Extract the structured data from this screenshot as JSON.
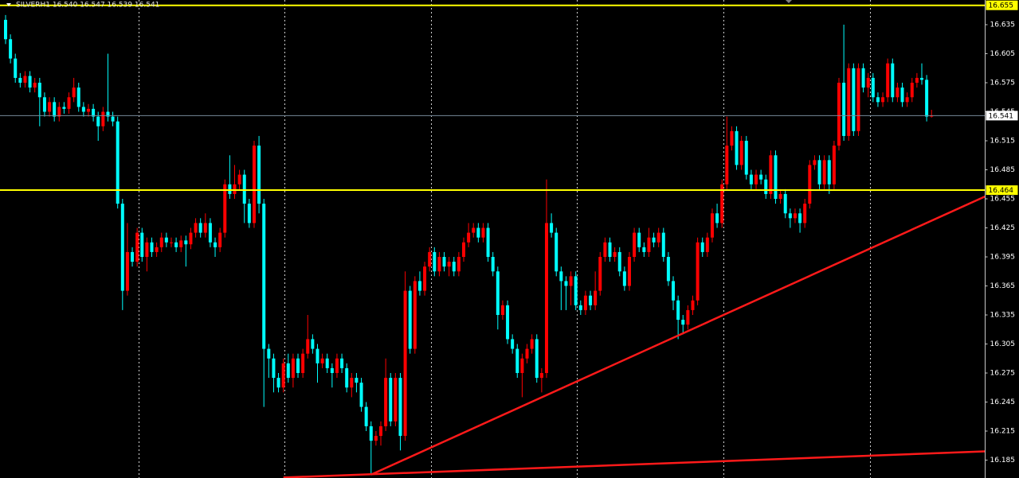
{
  "chart_data": {
    "type": "candlestick",
    "title": "SILVERH1 16.540 16.547 16.539 16.541",
    "up_color": "#ff0000",
    "down_color": "#00ffff",
    "ylim": [
      16.1665,
      16.6605
    ],
    "yticks": [
      16.635,
      16.605,
      16.575,
      16.545,
      16.515,
      16.485,
      16.455,
      16.425,
      16.395,
      16.365,
      16.335,
      16.305,
      16.275,
      16.245,
      16.215,
      16.185
    ],
    "separators": [
      27,
      57,
      87,
      117,
      147,
      177
    ],
    "hlines": [
      {
        "value": 16.655,
        "color": "#ffff00"
      },
      {
        "value": 16.464,
        "color": "#ffff00"
      },
      {
        "value": 16.541,
        "color": "#778899"
      }
    ],
    "trendlines": [
      {
        "from": {
          "index": 57,
          "price": 16.167
        },
        "to": {
          "index": 201,
          "price": 16.194
        },
        "color": "#ff1a1a"
      },
      {
        "from": {
          "index": 75,
          "price": 16.17
        },
        "to": {
          "index": 201,
          "price": 16.4575
        },
        "color": "#ff1a1a"
      }
    ],
    "open": [
      16.64,
      16.62,
      16.6,
      16.58,
      16.575,
      16.582,
      16.57,
      16.575,
      16.56,
      16.545,
      16.555,
      16.54,
      16.55,
      16.548,
      16.56,
      16.57,
      16.55,
      16.545,
      16.548,
      16.54,
      16.53,
      16.545,
      16.54,
      16.535,
      16.45,
      16.36,
      16.4,
      16.39,
      16.42,
      16.395,
      16.41,
      16.4,
      16.405,
      16.415,
      16.41,
      16.41,
      16.405,
      16.412,
      16.408,
      16.42,
      16.43,
      16.42,
      16.43,
      16.41,
      16.405,
      16.42,
      16.47,
      16.46,
      16.47,
      16.48,
      16.45,
      16.43,
      16.51,
      16.45,
      16.3,
      16.29,
      16.27,
      16.26,
      16.285,
      16.27,
      16.29,
      16.275,
      16.295,
      16.31,
      16.3,
      16.285,
      16.29,
      16.28,
      16.275,
      16.29,
      16.28,
      16.26,
      16.27,
      16.265,
      16.24,
      16.22,
      16.205,
      16.21,
      16.22,
      16.27,
      16.225,
      16.27,
      16.21,
      16.36,
      16.3,
      16.37,
      16.36,
      16.385,
      16.4,
      16.38,
      16.395,
      16.385,
      16.39,
      16.38,
      16.395,
      16.41,
      16.42,
      16.425,
      16.415,
      16.425,
      16.395,
      16.38,
      16.335,
      16.345,
      16.31,
      16.3,
      16.275,
      16.29,
      16.3,
      16.31,
      16.27,
      16.275,
      16.43,
      16.42,
      16.38,
      16.37,
      16.365,
      16.375,
      16.345,
      16.34,
      16.355,
      16.345,
      16.36,
      16.395,
      16.41,
      16.395,
      16.4,
      16.38,
      16.365,
      16.395,
      16.42,
      16.405,
      16.4,
      16.415,
      16.41,
      16.42,
      16.395,
      16.37,
      16.35,
      16.33,
      16.325,
      16.34,
      16.35,
      16.41,
      16.4,
      16.415,
      16.44,
      16.43,
      16.47,
      16.51,
      16.525,
      16.49,
      16.515,
      16.48,
      16.47,
      16.48,
      16.475,
      16.46,
      16.5,
      16.455,
      16.46,
      16.44,
      16.435,
      16.44,
      16.43,
      16.45,
      16.49,
      16.495,
      16.47,
      16.495,
      16.47,
      16.51,
      16.575,
      16.52,
      16.59,
      16.525,
      16.59,
      16.57,
      16.58,
      16.56,
      16.555,
      16.56,
      16.595,
      16.56,
      16.57,
      16.555,
      16.56,
      16.575,
      16.58,
      16.578,
      16.54
    ],
    "high": [
      16.645,
      16.625,
      16.605,
      16.585,
      16.587,
      16.587,
      16.58,
      16.58,
      16.565,
      16.56,
      16.56,
      16.555,
      16.555,
      16.565,
      16.58,
      16.575,
      16.555,
      16.553,
      16.553,
      16.545,
      16.55,
      16.605,
      16.545,
      16.54,
      16.455,
      16.43,
      16.405,
      16.425,
      16.425,
      16.415,
      16.415,
      16.41,
      16.42,
      16.42,
      16.415,
      16.415,
      16.417,
      16.417,
      16.425,
      16.435,
      16.435,
      16.44,
      16.435,
      16.415,
      16.425,
      16.475,
      16.5,
      16.49,
      16.485,
      16.485,
      16.455,
      16.515,
      16.52,
      16.455,
      16.305,
      16.295,
      16.275,
      16.29,
      16.295,
      16.295,
      16.295,
      16.3,
      16.335,
      16.315,
      16.305,
      16.295,
      16.295,
      16.285,
      16.295,
      16.295,
      16.285,
      16.275,
      16.275,
      16.27,
      16.245,
      16.225,
      16.215,
      16.225,
      16.29,
      16.275,
      16.275,
      16.275,
      16.38,
      16.365,
      16.375,
      16.38,
      16.39,
      16.405,
      16.405,
      16.4,
      16.4,
      16.395,
      16.395,
      16.4,
      16.415,
      16.43,
      16.43,
      16.43,
      16.43,
      16.43,
      16.4,
      16.385,
      16.35,
      16.35,
      16.315,
      16.305,
      16.295,
      16.305,
      16.315,
      16.315,
      16.28,
      16.475,
      16.44,
      16.425,
      16.385,
      16.375,
      16.38,
      16.38,
      16.35,
      16.36,
      16.36,
      16.38,
      16.4,
      16.415,
      16.415,
      16.405,
      16.405,
      16.385,
      16.4,
      16.425,
      16.425,
      16.41,
      16.425,
      16.42,
      16.425,
      16.425,
      16.4,
      16.375,
      16.355,
      16.335,
      16.345,
      16.355,
      16.415,
      16.415,
      16.42,
      16.445,
      16.45,
      16.475,
      16.54,
      16.53,
      16.53,
      16.52,
      16.52,
      16.485,
      16.485,
      16.485,
      16.48,
      16.505,
      16.505,
      16.465,
      16.465,
      16.445,
      16.445,
      16.445,
      16.455,
      16.495,
      16.5,
      16.5,
      16.5,
      16.5,
      16.515,
      16.58,
      16.635,
      16.595,
      16.595,
      16.595,
      16.595,
      16.585,
      16.585,
      16.565,
      16.565,
      16.6,
      16.6,
      16.575,
      16.575,
      16.565,
      16.58,
      16.585,
      16.595,
      16.583,
      16.547
    ],
    "low": [
      16.615,
      16.595,
      16.575,
      16.57,
      16.57,
      16.565,
      16.565,
      16.53,
      16.54,
      16.54,
      16.535,
      16.535,
      16.543,
      16.543,
      16.555,
      16.545,
      16.54,
      16.54,
      16.535,
      16.515,
      16.525,
      16.535,
      16.53,
      16.445,
      16.34,
      16.355,
      16.385,
      16.385,
      16.39,
      16.38,
      16.395,
      16.395,
      16.4,
      16.405,
      16.405,
      16.4,
      16.4,
      16.385,
      16.403,
      16.415,
      16.415,
      16.415,
      16.405,
      16.395,
      16.4,
      16.415,
      16.455,
      16.455,
      16.465,
      16.43,
      16.425,
      16.425,
      16.44,
      16.24,
      16.27,
      16.255,
      16.255,
      16.255,
      16.265,
      16.26,
      16.27,
      16.27,
      16.29,
      16.295,
      16.265,
      16.28,
      16.275,
      16.26,
      16.27,
      16.275,
      16.255,
      16.25,
      16.255,
      16.235,
      16.215,
      16.17,
      16.2,
      16.2,
      16.215,
      16.22,
      16.22,
      16.195,
      16.205,
      16.295,
      16.295,
      16.355,
      16.355,
      16.38,
      16.375,
      16.375,
      16.38,
      16.375,
      16.375,
      16.375,
      16.39,
      16.405,
      16.415,
      16.41,
      16.41,
      16.39,
      16.375,
      16.32,
      16.33,
      16.305,
      16.295,
      16.27,
      16.25,
      16.285,
      16.295,
      16.265,
      16.255,
      16.27,
      16.415,
      16.375,
      16.34,
      16.34,
      16.345,
      16.34,
      16.335,
      16.335,
      16.34,
      16.34,
      16.355,
      16.39,
      16.39,
      16.39,
      16.375,
      16.36,
      16.36,
      16.39,
      16.4,
      16.395,
      16.395,
      16.405,
      16.405,
      16.39,
      16.365,
      16.34,
      16.31,
      16.315,
      16.32,
      16.335,
      16.345,
      16.395,
      16.395,
      16.41,
      16.425,
      16.425,
      16.465,
      16.505,
      16.485,
      16.485,
      16.475,
      16.465,
      16.465,
      16.47,
      16.455,
      16.455,
      16.45,
      16.45,
      16.435,
      16.425,
      16.43,
      16.42,
      16.425,
      16.445,
      16.485,
      16.465,
      16.465,
      16.46,
      16.465,
      16.505,
      16.515,
      16.515,
      16.52,
      16.52,
      16.565,
      16.56,
      16.555,
      16.55,
      16.55,
      16.555,
      16.555,
      16.555,
      16.55,
      16.55,
      16.555,
      16.57,
      16.573,
      16.535,
      16.539
    ],
    "close": [
      16.62,
      16.6,
      16.58,
      16.575,
      16.582,
      16.57,
      16.575,
      16.56,
      16.545,
      16.555,
      16.54,
      16.55,
      16.548,
      16.56,
      16.57,
      16.55,
      16.545,
      16.548,
      16.54,
      16.53,
      16.545,
      16.54,
      16.535,
      16.45,
      16.36,
      16.4,
      16.39,
      16.42,
      16.395,
      16.41,
      16.4,
      16.405,
      16.415,
      16.41,
      16.41,
      16.405,
      16.412,
      16.408,
      16.42,
      16.43,
      16.42,
      16.43,
      16.41,
      16.405,
      16.42,
      16.47,
      16.46,
      16.47,
      16.48,
      16.45,
      16.43,
      16.51,
      16.45,
      16.3,
      16.29,
      16.27,
      16.26,
      16.285,
      16.27,
      16.29,
      16.275,
      16.295,
      16.31,
      16.3,
      16.285,
      16.29,
      16.28,
      16.275,
      16.29,
      16.28,
      16.26,
      16.27,
      16.265,
      16.24,
      16.22,
      16.205,
      16.21,
      16.22,
      16.27,
      16.225,
      16.27,
      16.21,
      16.36,
      16.3,
      16.37,
      16.36,
      16.385,
      16.4,
      16.38,
      16.395,
      16.385,
      16.39,
      16.38,
      16.395,
      16.41,
      16.42,
      16.425,
      16.415,
      16.425,
      16.395,
      16.38,
      16.335,
      16.345,
      16.31,
      16.3,
      16.275,
      16.29,
      16.3,
      16.31,
      16.27,
      16.275,
      16.43,
      16.42,
      16.38,
      16.37,
      16.365,
      16.375,
      16.345,
      16.34,
      16.355,
      16.345,
      16.36,
      16.395,
      16.41,
      16.395,
      16.4,
      16.38,
      16.365,
      16.395,
      16.42,
      16.405,
      16.4,
      16.415,
      16.41,
      16.42,
      16.395,
      16.37,
      16.35,
      16.33,
      16.325,
      16.34,
      16.35,
      16.41,
      16.4,
      16.415,
      16.44,
      16.43,
      16.47,
      16.51,
      16.525,
      16.49,
      16.515,
      16.48,
      16.47,
      16.48,
      16.475,
      16.46,
      16.5,
      16.455,
      16.46,
      16.44,
      16.435,
      16.44,
      16.43,
      16.45,
      16.49,
      16.495,
      16.47,
      16.495,
      16.47,
      16.51,
      16.575,
      16.52,
      16.59,
      16.525,
      16.59,
      16.57,
      16.58,
      16.56,
      16.555,
      16.56,
      16.595,
      16.56,
      16.57,
      16.555,
      16.56,
      16.575,
      16.58,
      16.578,
      16.54,
      16.541
    ]
  }
}
